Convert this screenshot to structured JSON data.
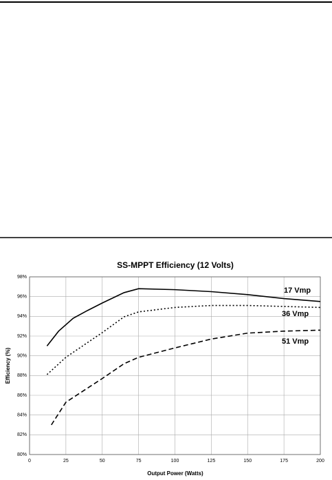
{
  "chart_data": {
    "type": "line",
    "title": "SS-MPPT Efficiency (12 Volts)",
    "x_label": "Output Power (Watts)",
    "y_label": "Efficiency (%)",
    "xlim": [
      0,
      200
    ],
    "xticks": [
      0,
      25,
      50,
      75,
      100,
      125,
      150,
      175,
      200
    ],
    "ylim": [
      80,
      98
    ],
    "yticks": [
      {
        "value": 80,
        "label": "80%"
      },
      {
        "value": 82,
        "label": "82%"
      },
      {
        "value": 84,
        "label": "84%"
      },
      {
        "value": 86,
        "label": "86%"
      },
      {
        "value": 88,
        "label": "88%"
      },
      {
        "value": 90,
        "label": "90%"
      },
      {
        "value": 92,
        "label": "92%"
      },
      {
        "value": 94,
        "label": "94%"
      },
      {
        "value": 96,
        "label": "96%"
      },
      {
        "value": 98,
        "label": "98%"
      }
    ],
    "grid": true,
    "series": [
      {
        "name": "17 Vmp",
        "color": "#000000",
        "dash": "solid",
        "x": [
          12,
          20,
          30,
          40,
          50,
          65,
          75,
          100,
          125,
          150,
          175,
          200
        ],
        "values": [
          91.0,
          92.5,
          93.8,
          94.6,
          95.35,
          96.4,
          96.8,
          96.7,
          96.5,
          96.2,
          95.8,
          95.5
        ]
      },
      {
        "name": "36 Vmp",
        "color": "#000000",
        "dash": "dotted",
        "x": [
          12,
          25,
          50,
          65,
          75,
          100,
          125,
          150,
          175,
          200
        ],
        "values": [
          88.1,
          89.85,
          92.35,
          93.95,
          94.45,
          94.9,
          95.1,
          95.1,
          95.0,
          94.9
        ]
      },
      {
        "name": "51 Vmp",
        "color": "#000000",
        "dash": "dashed",
        "x": [
          15,
          25,
          50,
          65,
          75,
          100,
          125,
          150,
          175,
          200
        ],
        "values": [
          83.0,
          85.3,
          87.7,
          89.2,
          89.85,
          90.8,
          91.7,
          92.3,
          92.5,
          92.6
        ]
      }
    ]
  }
}
